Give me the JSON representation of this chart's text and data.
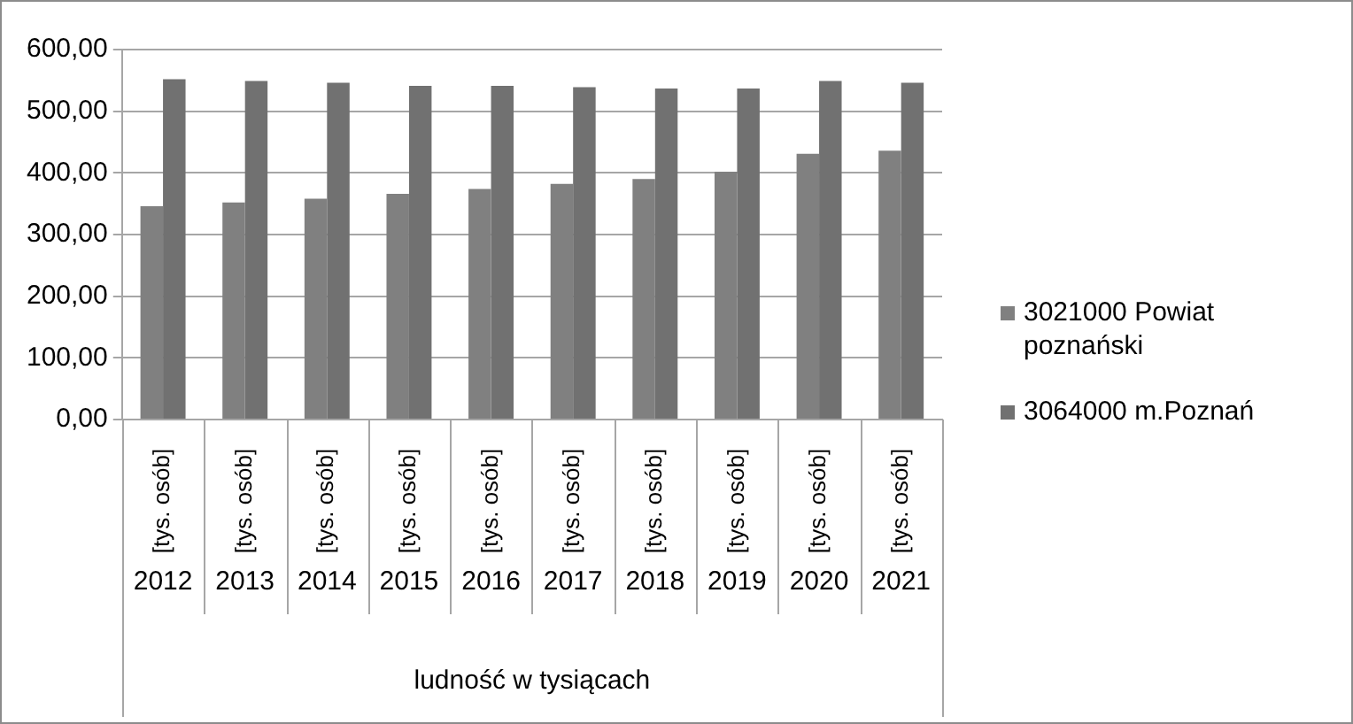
{
  "chart_data": {
    "type": "bar",
    "categories": [
      "2012",
      "2013",
      "2014",
      "2015",
      "2016",
      "2017",
      "2018",
      "2019",
      "2020",
      "2021"
    ],
    "series": [
      {
        "name": "3021000 Powiat poznański",
        "color": "#808080",
        "values": [
          346,
          352,
          358,
          366,
          374,
          382,
          390,
          402,
          431,
          436
        ]
      },
      {
        "name": "3064000 m.Poznań",
        "color": "#717171",
        "values": [
          552,
          549,
          546,
          541,
          541,
          539,
          537,
          537,
          549,
          546
        ]
      }
    ],
    "xlabel": "ludność w tysiącach",
    "annotations": [
      "[tys. osób]",
      "[tys. osób]",
      "[tys. osób]",
      "[tys. osób]",
      "[tys. osób]",
      "[tys. osób]",
      "[tys. osób]",
      "[tys. osób]",
      "[tys. osób]",
      "[tys. osób]"
    ],
    "ylim": [
      0,
      600
    ],
    "yticks": [
      {
        "value": 0,
        "label": "0,00"
      },
      {
        "value": 100,
        "label": "100,00"
      },
      {
        "value": 200,
        "label": "200,00"
      },
      {
        "value": 300,
        "label": "300,00"
      },
      {
        "value": 400,
        "label": "400,00"
      },
      {
        "value": 500,
        "label": "500,00"
      },
      {
        "value": 600,
        "label": "600,00"
      }
    ],
    "grid": "y",
    "legend": "right"
  }
}
